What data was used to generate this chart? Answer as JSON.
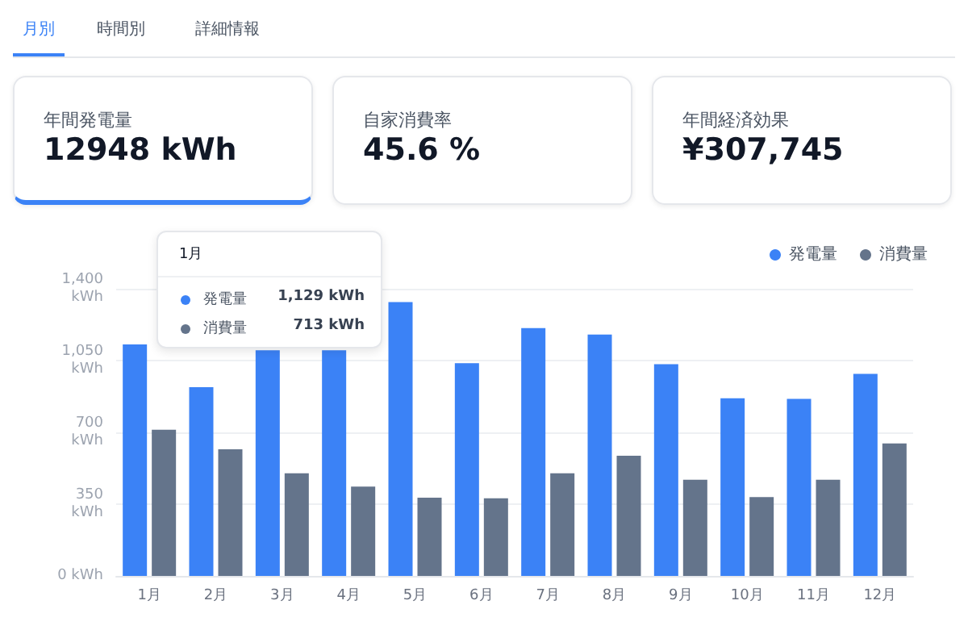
{
  "chart_data": [
    {
      "type": "other",
      "annotations": [
        "月別",
        "時間別",
        "詳細情報",
        "年間発電量",
        "12948 kWh",
        "自家消費率",
        "45.6 %",
        "年間経済効果",
        "¥307,745"
      ]
    },
    {
      "type": "bar",
      "categories": [
        "1月",
        "2月",
        "3月",
        "4月",
        "5月",
        "6月",
        "7月",
        "8月",
        "9月",
        "10月",
        "11月",
        "12月"
      ],
      "series": [
        {
          "name": "発電量",
          "color": "#3b82f6",
          "values": [
            1129,
            920,
            1100,
            1100,
            1335,
            1037,
            1208,
            1177,
            1032,
            866,
            863,
            985
          ]
        },
        {
          "name": "消費量",
          "color": "#64748b",
          "values": [
            713,
            617,
            500,
            436,
            381,
            379,
            500,
            586,
            469,
            384,
            469,
            646
          ]
        }
      ],
      "ylim": [
        0,
        1400
      ],
      "yticks": [
        {
          "value": 0,
          "label": "0 kWh"
        },
        {
          "value": 350,
          "label": "350\nkWh"
        },
        {
          "value": 700,
          "label": "700\nkWh"
        },
        {
          "value": 1050,
          "label": "1,050\nkWh"
        },
        {
          "value": 1400,
          "label": "1,400\nkWh"
        }
      ],
      "grid": "y",
      "legend": "top right",
      "annotations": [
        "1月",
        "発電量",
        "1,129 kWh",
        "消費量",
        "713 kWh"
      ]
    }
  ]
}
